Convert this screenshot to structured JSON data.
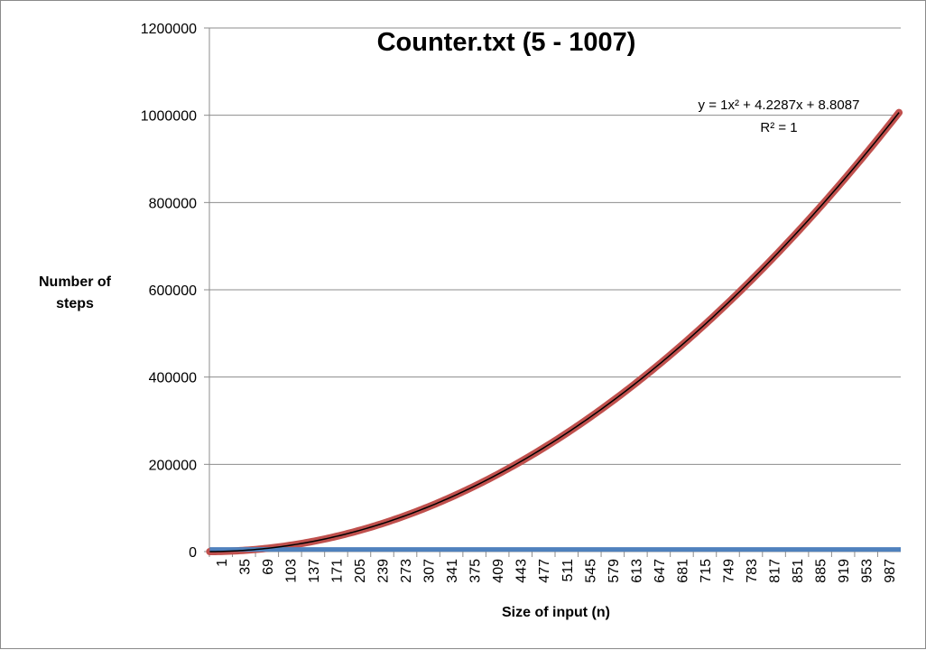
{
  "chart_data": {
    "type": "line",
    "title": "Counter.txt (5 - 1007)",
    "xlabel": "Size of input (n)",
    "ylabel_line1": "Number of",
    "ylabel_line2": "steps",
    "ylim": [
      0,
      1200000
    ],
    "y_ticks": [
      0,
      200000,
      400000,
      600000,
      800000,
      1000000,
      1200000
    ],
    "y_tick_labels": [
      "0",
      "200000",
      "400000",
      "600000",
      "800000",
      "1000000",
      "1200000"
    ],
    "x_range": [
      1,
      1003
    ],
    "x_tick_labels": [
      "1",
      "35",
      "69",
      "103",
      "137",
      "171",
      "205",
      "239",
      "273",
      "307",
      "341",
      "375",
      "409",
      "443",
      "477",
      "511",
      "545",
      "579",
      "613",
      "647",
      "681",
      "715",
      "749",
      "783",
      "817",
      "851",
      "885",
      "919",
      "953",
      "987"
    ],
    "grid": true,
    "trendline": {
      "equation": "y = 1x² + 4.2287x + 8.8087",
      "r_squared": "R² = 1",
      "coefficients": [
        1,
        4.2287,
        8.8087
      ],
      "color": "#000000"
    },
    "series": [
      {
        "kind": "quadratic",
        "color": "#c0504d",
        "x_start": 1,
        "x_end": 1003,
        "coefficients": [
          1,
          4.2287,
          8.8087
        ]
      },
      {
        "kind": "flat",
        "color": "#4f81bd",
        "x_start": 1,
        "x_end": 1003,
        "value": 5000
      }
    ]
  }
}
